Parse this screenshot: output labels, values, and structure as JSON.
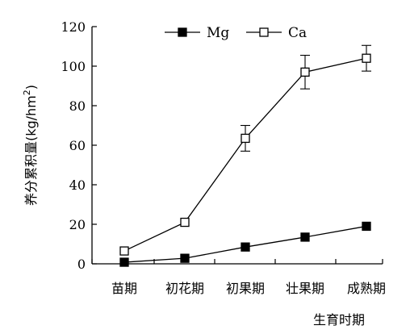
{
  "chart_data": {
    "type": "line",
    "categories": [
      "苗期",
      "初花期",
      "初果期",
      "壮果期",
      "成熟期"
    ],
    "xlabel": "生育时期",
    "ylabel_main": "养分累积量",
    "ylabel_unit_prefix": "(kg/hm",
    "ylabel_unit_sup": "2",
    "ylabel_unit_suffix": ")",
    "ylim": [
      0,
      120
    ],
    "yticks": [
      0,
      20,
      40,
      60,
      80,
      100,
      120
    ],
    "grid": false,
    "legend_position": "top",
    "series": [
      {
        "name": "Mg",
        "marker": "filled-square",
        "color": "#000000",
        "values": [
          0.8,
          2.8,
          8.5,
          13.5,
          19
        ],
        "errors": [
          0,
          0,
          0,
          0,
          0
        ]
      },
      {
        "name": "Ca",
        "marker": "open-square",
        "color": "#000000",
        "values": [
          6.5,
          21,
          63.5,
          97,
          104
        ],
        "errors": [
          0,
          0,
          6.5,
          8.5,
          6.5
        ]
      }
    ]
  }
}
